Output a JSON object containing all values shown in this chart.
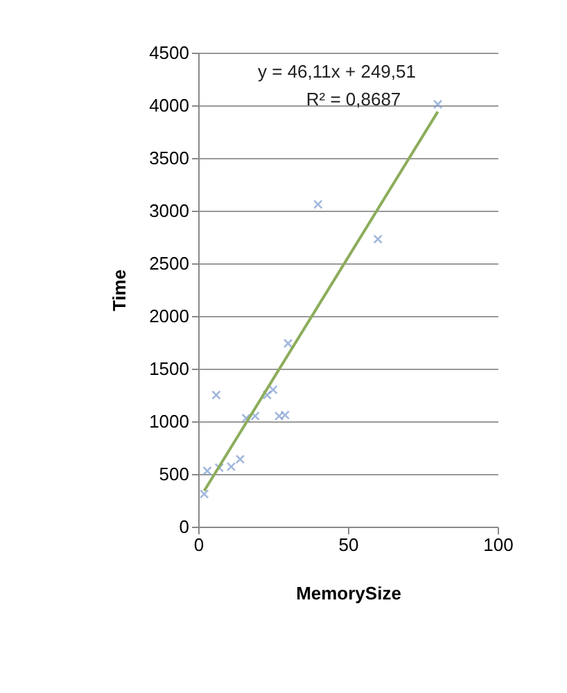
{
  "chart_data": {
    "type": "scatter",
    "xlabel": "MemorySize",
    "ylabel": "Time",
    "xlim": [
      0,
      100
    ],
    "xticks": [
      0,
      50,
      100
    ],
    "ylim": [
      0,
      4500
    ],
    "yticks": [
      0,
      500,
      1000,
      1500,
      2000,
      2500,
      3000,
      3500,
      4000,
      4500
    ],
    "grid": "y",
    "annotations": [
      "y = 46,11x + 249,51",
      "R² = 0,8687"
    ],
    "series": [
      {
        "color": "#7b9bd0",
        "marker": "cross",
        "x": [
          80,
          40,
          60,
          30,
          6,
          23,
          25,
          16,
          19,
          27,
          29,
          3,
          7,
          11,
          14,
          2
        ],
        "values": [
          4010,
          3060,
          2730,
          1740,
          1250,
          1250,
          1300,
          1030,
          1050,
          1050,
          1060,
          530,
          560,
          570,
          640,
          310
        ]
      },
      {
        "type": "line",
        "color": "#8cad5c",
        "x": [
          2,
          80
        ],
        "values": [
          340,
          3940
        ]
      }
    ]
  }
}
